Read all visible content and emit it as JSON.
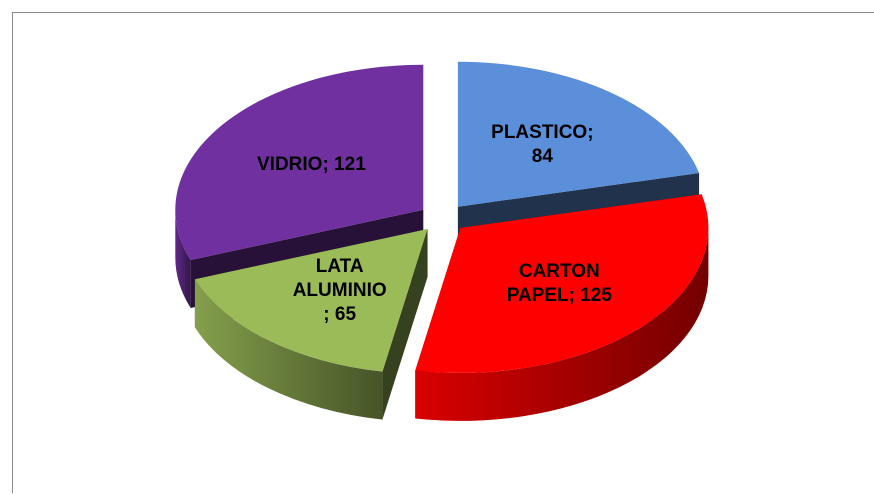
{
  "chart_data": {
    "type": "pie",
    "style": "3d-exploded",
    "title": "",
    "legend": "none",
    "slices": [
      {
        "label": "PLASTICO",
        "value": 84,
        "color": "#5b8fd9",
        "label_lines": [
          "PLASTICO;",
          "84"
        ]
      },
      {
        "label": "CARTON PAPEL",
        "value": 125,
        "color": "#ff0000",
        "label_lines": [
          "CARTON",
          "PAPEL; 125"
        ]
      },
      {
        "label": "LATA ALUMINIO",
        "value": 65,
        "color": "#9bbb59",
        "label_lines": [
          "LATA",
          "ALUMINIO",
          "; 65"
        ]
      },
      {
        "label": "VIDRIO",
        "value": 121,
        "color": "#7030a0",
        "label_lines": [
          "VIDRIO; 121"
        ]
      }
    ]
  }
}
